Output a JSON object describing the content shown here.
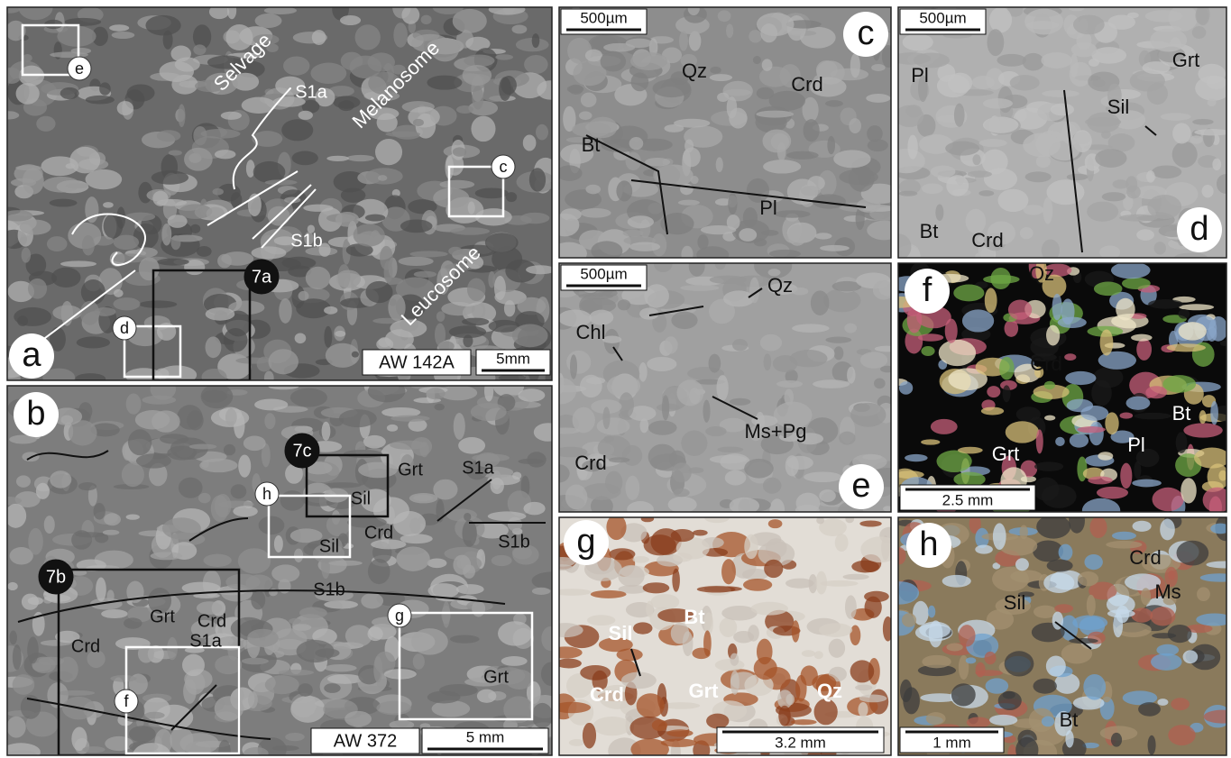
{
  "panels": [
    {
      "letter": "a",
      "labels": [
        "Selvage",
        "Melanosome",
        "Leucosome",
        "S1a",
        "S1b"
      ],
      "boxes": [
        "e",
        "c",
        "d",
        "7a"
      ],
      "sample": "AW 142A",
      "scale": "5mm"
    },
    {
      "letter": "b",
      "labels": [
        "S1a",
        "S1b",
        "S1b",
        "Grt",
        "Sil",
        "Crd",
        "Sil",
        "Grt",
        "Crd",
        "Crd",
        "S1a",
        "Grt"
      ],
      "boxes": [
        "7c",
        "h",
        "7b",
        "f",
        "g"
      ],
      "sample": "AW 372",
      "scale": "5 mm"
    },
    {
      "letter": "c",
      "labels": [
        "Qz",
        "Crd",
        "Bt",
        "Pl"
      ],
      "scale": "500µm"
    },
    {
      "letter": "d",
      "labels": [
        "Pl",
        "Grt",
        "Sil",
        "Bt",
        "Crd"
      ],
      "scale": "500µm"
    },
    {
      "letter": "e",
      "labels": [
        "Qz",
        "Chl",
        "Ms+Pg",
        "Crd"
      ],
      "scale": "500µm"
    },
    {
      "letter": "f",
      "labels": [
        "Qz",
        "Crd",
        "Bt",
        "Pl",
        "Grt"
      ],
      "scale": "2.5 mm"
    },
    {
      "letter": "g",
      "labels": [
        "Bt",
        "Sil",
        "Crd",
        "Grt",
        "Qz"
      ],
      "scale": "3.2 mm"
    },
    {
      "letter": "h",
      "labels": [
        "Crd",
        "Ms",
        "Sil",
        "Bt"
      ],
      "scale": "1 mm"
    }
  ]
}
